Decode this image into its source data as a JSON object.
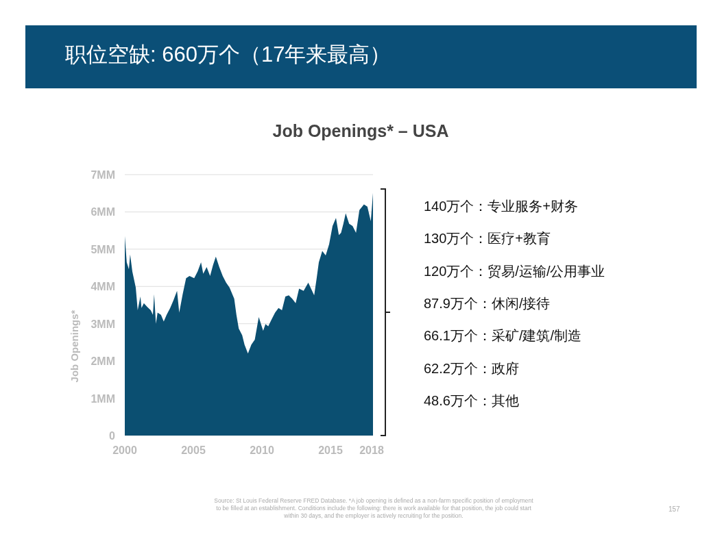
{
  "chart_data": {
    "type": "area",
    "title": "职位空缺: 660万个（17年来最高）",
    "subtitle": "Job Openings* – USA",
    "ylabel": "Job Openings*",
    "x": [
      2000.0,
      2000.14,
      2000.3,
      2000.39,
      2000.55,
      2000.8,
      2000.94,
      2001.14,
      2001.22,
      2001.39,
      2001.64,
      2001.89,
      2002.05,
      2002.14,
      2002.27,
      2002.39,
      2002.64,
      2002.84,
      2003.05,
      2003.31,
      2003.56,
      2003.81,
      2003.97,
      2004.22,
      2004.47,
      2004.72,
      2005.06,
      2005.31,
      2005.56,
      2005.72,
      2005.97,
      2006.22,
      2006.44,
      2006.64,
      2006.89,
      2007.14,
      2007.39,
      2007.64,
      2007.98,
      2008.14,
      2008.31,
      2008.56,
      2008.73,
      2008.98,
      2009.23,
      2009.48,
      2009.77,
      2010.09,
      2010.26,
      2010.46,
      2010.71,
      2010.96,
      2011.21,
      2011.46,
      2011.71,
      2011.96,
      2012.21,
      2012.46,
      2012.71,
      2013.04,
      2013.38,
      2013.81,
      2013.98,
      2014.15,
      2014.4,
      2014.65,
      2014.9,
      2015.15,
      2015.4,
      2015.61,
      2015.77,
      2015.94,
      2016.11,
      2016.36,
      2016.61,
      2016.86,
      2017.11,
      2017.44,
      2017.69,
      2017.94,
      2018.03,
      2018.1
    ],
    "series": [
      {
        "color": "#0b4f71",
        "values": [
          5.35,
          4.65,
          4.46,
          4.86,
          4.4,
          3.97,
          3.36,
          3.73,
          3.42,
          3.55,
          3.45,
          3.36,
          3.24,
          3.79,
          3.0,
          3.3,
          3.24,
          3.06,
          3.24,
          3.42,
          3.64,
          3.88,
          3.3,
          3.79,
          4.22,
          4.28,
          4.22,
          4.4,
          4.65,
          4.34,
          4.52,
          4.28,
          4.58,
          4.8,
          4.52,
          4.28,
          4.1,
          3.97,
          3.67,
          3.24,
          2.87,
          2.69,
          2.44,
          2.2,
          2.44,
          2.57,
          3.18,
          2.81,
          2.99,
          2.93,
          3.12,
          3.3,
          3.42,
          3.36,
          3.73,
          3.76,
          3.67,
          3.55,
          3.94,
          3.88,
          4.1,
          3.76,
          4.19,
          4.65,
          4.95,
          4.83,
          5.13,
          5.62,
          5.84,
          5.38,
          5.44,
          5.68,
          5.96,
          5.68,
          5.62,
          5.44,
          6.05,
          6.2,
          6.14,
          5.75,
          6.17,
          6.51
        ]
      }
    ],
    "xlim": [
      2000,
      2018.1
    ],
    "ylim": [
      0,
      7
    ],
    "xticks": [
      2000,
      2005,
      2010,
      2015,
      2018
    ],
    "yticks": [
      {
        "value": 0,
        "label": "0"
      },
      {
        "value": 1,
        "label": "1MM"
      },
      {
        "value": 2,
        "label": "2MM"
      },
      {
        "value": 3,
        "label": "3MM"
      },
      {
        "value": 4,
        "label": "4MM"
      },
      {
        "value": 5,
        "label": "5MM"
      },
      {
        "value": 6,
        "label": "6MM"
      },
      {
        "value": 7,
        "label": "7MM"
      }
    ],
    "grid": "y",
    "annotations": [
      "140万个：专业服务+财务",
      "130万个：医疗+教育",
      "120万个：贸易/运输/公用事业",
      "87.9万个：休闲/接待",
      "66.1万个：采矿/建筑/制造",
      "62.2万个：政府",
      "48.6万个：其他",
      "Source: St Louis Federal Reserve FRED Database. *A job opening is defined as a non-farm specific position of employment to be filled at an establishment. Conditions include the following: there is work available for that position, the job could start within 30 days, and the employer is actively recruiting for the position.",
      "157"
    ]
  }
}
